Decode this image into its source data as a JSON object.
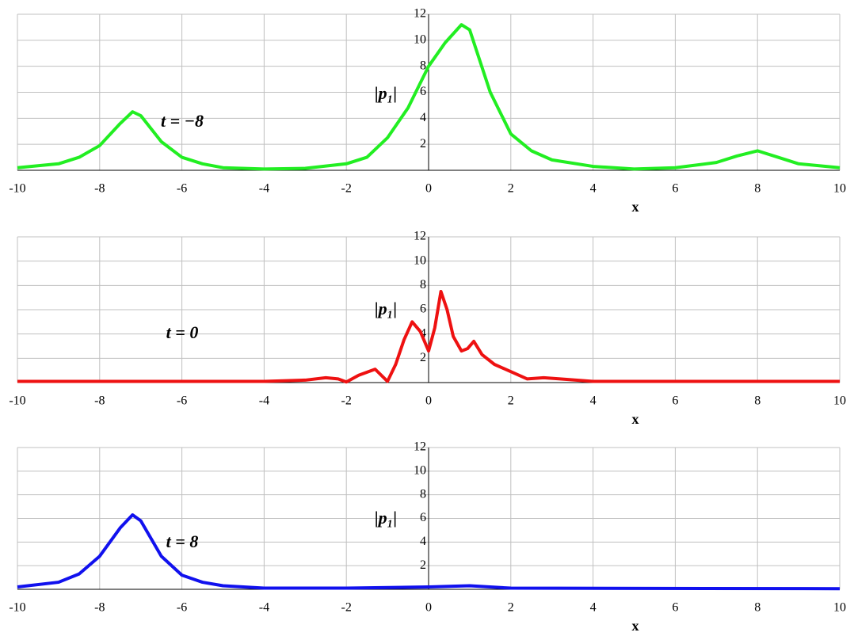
{
  "chart_data": [
    {
      "type": "line",
      "annotation": "t = −8",
      "x_label": "x",
      "y_label": "|p₁|",
      "xlim": [
        -10,
        10
      ],
      "xticks": [
        -10,
        -8,
        -6,
        -4,
        -2,
        0,
        2,
        4,
        6,
        8,
        10
      ],
      "ylim": [
        0,
        12
      ],
      "yticks": [
        2,
        4,
        6,
        8,
        10,
        12
      ],
      "grid": true,
      "series": [
        {
          "color": "#22ee22",
          "x": [
            -10,
            -9,
            -8.5,
            -8,
            -7.5,
            -7.2,
            -7,
            -6.5,
            -6,
            -5.5,
            -5,
            -4,
            -3,
            -2,
            -1.5,
            -1,
            -0.5,
            0,
            0.4,
            0.8,
            1,
            1.5,
            2,
            2.5,
            3,
            4,
            5,
            6,
            7,
            7.5,
            8,
            8.5,
            9,
            10
          ],
          "values": [
            0.2,
            0.5,
            1,
            1.9,
            3.6,
            4.5,
            4.2,
            2.2,
            1.0,
            0.5,
            0.2,
            0.1,
            0.15,
            0.5,
            1.0,
            2.5,
            4.8,
            8,
            9.8,
            11.2,
            10.8,
            6,
            2.8,
            1.5,
            0.8,
            0.3,
            0.1,
            0.2,
            0.6,
            1.1,
            1.5,
            1.0,
            0.5,
            0.2
          ]
        }
      ]
    },
    {
      "type": "line",
      "annotation": "t = 0",
      "x_label": "x",
      "y_label": "|p₁|",
      "xlim": [
        -10,
        10
      ],
      "xticks": [
        -10,
        -8,
        -6,
        -4,
        -2,
        0,
        2,
        4,
        6,
        8,
        10
      ],
      "ylim": [
        0,
        12
      ],
      "yticks": [
        2,
        4,
        6,
        8,
        10,
        12
      ],
      "grid": true,
      "series": [
        {
          "color": "#ee1111",
          "x": [
            -10,
            -4,
            -3,
            -2.5,
            -2.2,
            -2,
            -1.7,
            -1.3,
            -1,
            -0.8,
            -0.6,
            -0.4,
            -0.2,
            0,
            0.15,
            0.3,
            0.45,
            0.6,
            0.8,
            0.95,
            1.1,
            1.3,
            1.6,
            2,
            2.4,
            2.8,
            3.2,
            4,
            10
          ],
          "values": [
            0.1,
            0.1,
            0.2,
            0.4,
            0.3,
            0.05,
            0.6,
            1.1,
            0.1,
            1.5,
            3.5,
            5,
            4.2,
            2.6,
            4.5,
            7.5,
            6,
            3.8,
            2.6,
            2.8,
            3.4,
            2.3,
            1.5,
            0.9,
            0.3,
            0.4,
            0.3,
            0.1,
            0.1
          ]
        }
      ]
    },
    {
      "type": "line",
      "annotation": "t = 8",
      "x_label": "x",
      "y_label": "|p₁|",
      "xlim": [
        -10,
        10
      ],
      "xticks": [
        -10,
        -8,
        -6,
        -4,
        -2,
        0,
        2,
        4,
        6,
        8,
        10
      ],
      "ylim": [
        0,
        12
      ],
      "yticks": [
        2,
        4,
        6,
        8,
        10,
        12
      ],
      "grid": true,
      "series": [
        {
          "color": "#1111ee",
          "x": [
            -10,
            -9,
            -8.5,
            -8,
            -7.5,
            -7.2,
            -7,
            -6.5,
            -6,
            -5.5,
            -5,
            -4,
            -2,
            0,
            1,
            2,
            10
          ],
          "values": [
            0.2,
            0.6,
            1.3,
            2.8,
            5.2,
            6.3,
            5.8,
            2.8,
            1.2,
            0.6,
            0.3,
            0.1,
            0.1,
            0.2,
            0.3,
            0.1,
            0.05
          ]
        }
      ]
    }
  ]
}
